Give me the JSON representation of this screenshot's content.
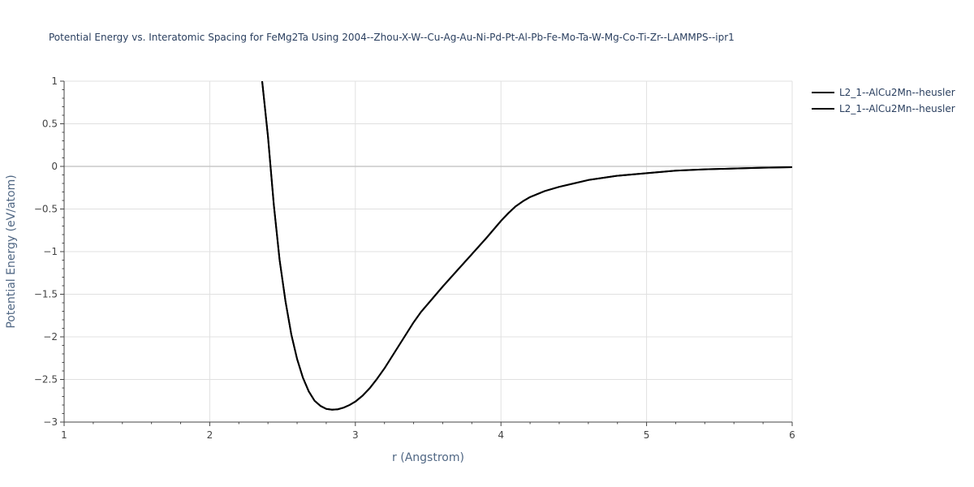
{
  "chart_data": {
    "type": "line",
    "title": "Potential Energy vs. Interatomic Spacing for FeMg2Ta Using 2004--Zhou-X-W--Cu-Ag-Au-Ni-Pd-Pt-Al-Pb-Fe-Mo-Ta-W-Mg-Co-Ti-Zr--LAMMPS--ipr1",
    "xlabel": "r (Angstrom)",
    "ylabel": "Potential Energy (eV/atom)",
    "xlim": [
      1,
      6
    ],
    "ylim": [
      -3,
      1
    ],
    "x_ticks": [
      1,
      2,
      3,
      4,
      5,
      6
    ],
    "x_tick_labels": [
      "1",
      "2",
      "3",
      "4",
      "5",
      "6"
    ],
    "y_ticks": [
      1,
      0.5,
      0,
      -0.5,
      -1,
      -1.5,
      -2,
      -2.5,
      -3
    ],
    "y_tick_labels": [
      "1",
      "0.5",
      "0",
      "−0.5",
      "−1",
      "−1.5",
      "−2",
      "−2.5",
      "−3"
    ],
    "grid": true,
    "legend_position": "top-right",
    "series": [
      {
        "name": "L2_1--AlCu2Mn--heusler",
        "color": "#000000",
        "x": [
          2.36,
          2.4,
          2.44,
          2.48,
          2.52,
          2.56,
          2.6,
          2.64,
          2.68,
          2.72,
          2.76,
          2.8,
          2.84,
          2.88,
          2.92,
          2.96,
          3.0,
          3.05,
          3.1,
          3.15,
          3.2,
          3.3,
          3.4,
          3.45,
          3.5,
          3.6,
          3.7,
          3.8,
          3.9,
          3.95,
          4.0,
          4.05,
          4.1,
          4.15,
          4.2,
          4.3,
          4.4,
          4.5,
          4.6,
          4.8,
          5.0,
          5.2,
          5.4,
          5.6,
          5.8,
          6.0
        ],
        "y": [
          1.0,
          0.35,
          -0.45,
          -1.1,
          -1.58,
          -1.97,
          -2.26,
          -2.48,
          -2.64,
          -2.75,
          -2.81,
          -2.845,
          -2.855,
          -2.85,
          -2.83,
          -2.8,
          -2.76,
          -2.69,
          -2.6,
          -2.49,
          -2.37,
          -2.1,
          -1.83,
          -1.71,
          -1.61,
          -1.41,
          -1.22,
          -1.03,
          -0.84,
          -0.74,
          -0.64,
          -0.55,
          -0.47,
          -0.41,
          -0.36,
          -0.29,
          -0.24,
          -0.2,
          -0.16,
          -0.11,
          -0.08,
          -0.05,
          -0.035,
          -0.025,
          -0.015,
          -0.01
        ]
      },
      {
        "name": "L2_1--AlCu2Mn--heusler",
        "color": "#000000",
        "x": [
          2.36,
          2.4,
          2.44,
          2.48,
          2.52,
          2.56,
          2.6,
          2.64,
          2.68,
          2.72,
          2.76,
          2.8,
          2.84,
          2.88,
          2.92,
          2.96,
          3.0,
          3.05,
          3.1,
          3.15,
          3.2,
          3.3,
          3.4,
          3.45,
          3.5,
          3.6,
          3.7,
          3.8,
          3.9,
          3.95,
          4.0,
          4.05,
          4.1,
          4.15,
          4.2,
          4.3,
          4.4,
          4.5,
          4.6,
          4.8,
          5.0,
          5.2,
          5.4,
          5.6,
          5.8,
          6.0
        ],
        "y": [
          1.0,
          0.35,
          -0.45,
          -1.1,
          -1.58,
          -1.97,
          -2.26,
          -2.48,
          -2.64,
          -2.75,
          -2.81,
          -2.845,
          -2.855,
          -2.85,
          -2.83,
          -2.8,
          -2.76,
          -2.69,
          -2.6,
          -2.49,
          -2.37,
          -2.1,
          -1.83,
          -1.71,
          -1.61,
          -1.41,
          -1.22,
          -1.03,
          -0.84,
          -0.74,
          -0.64,
          -0.55,
          -0.47,
          -0.41,
          -0.36,
          -0.29,
          -0.24,
          -0.2,
          -0.16,
          -0.11,
          -0.08,
          -0.05,
          -0.035,
          -0.025,
          -0.015,
          -0.01
        ]
      }
    ]
  }
}
